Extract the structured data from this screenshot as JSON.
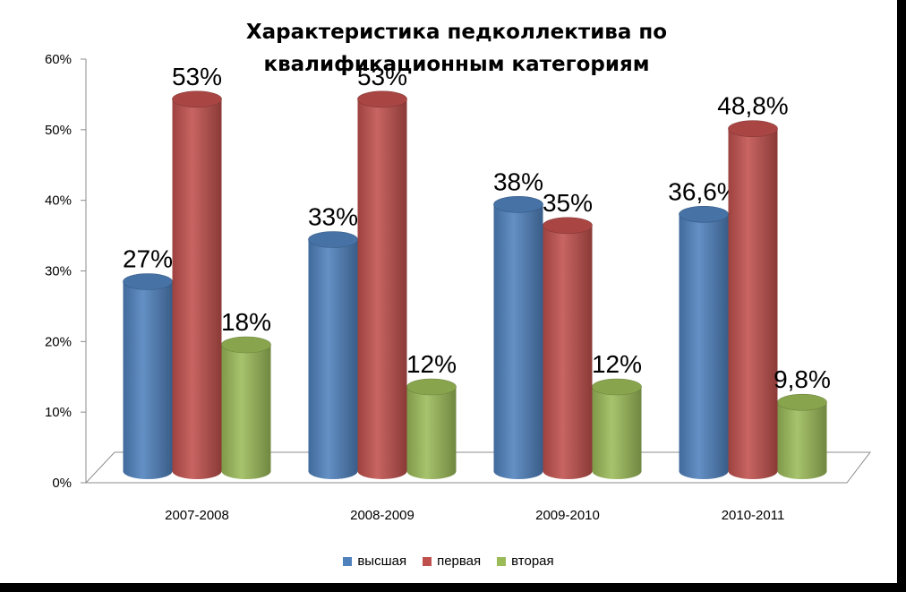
{
  "chart_data": {
    "type": "bar",
    "title": "Характеристика педколлектива по квалификационным категориям",
    "categories": [
      "2007-2008",
      "2008-2009",
      "2009-2010",
      "2010-2011"
    ],
    "series": [
      {
        "name": "высшая",
        "color": "#4f81bd",
        "values": [
          27,
          33,
          38,
          36.6
        ],
        "labels": [
          "27%",
          "33%",
          "38%",
          "36,6%"
        ]
      },
      {
        "name": "первая",
        "color": "#c0504d",
        "values": [
          53,
          53,
          35,
          48.8
        ],
        "labels": [
          "53%",
          "53%",
          "35%",
          "48,8%"
        ]
      },
      {
        "name": "вторая",
        "color": "#9bbb59",
        "values": [
          18,
          12,
          12,
          9.8
        ],
        "labels": [
          "18%",
          "12%",
          "12%",
          "9,8%"
        ]
      }
    ],
    "yticks": [
      "0%",
      "10%",
      "20%",
      "30%",
      "40%",
      "50%",
      "60%"
    ],
    "ylim": [
      0,
      60
    ],
    "legend_position": "bottom",
    "grid": false
  }
}
